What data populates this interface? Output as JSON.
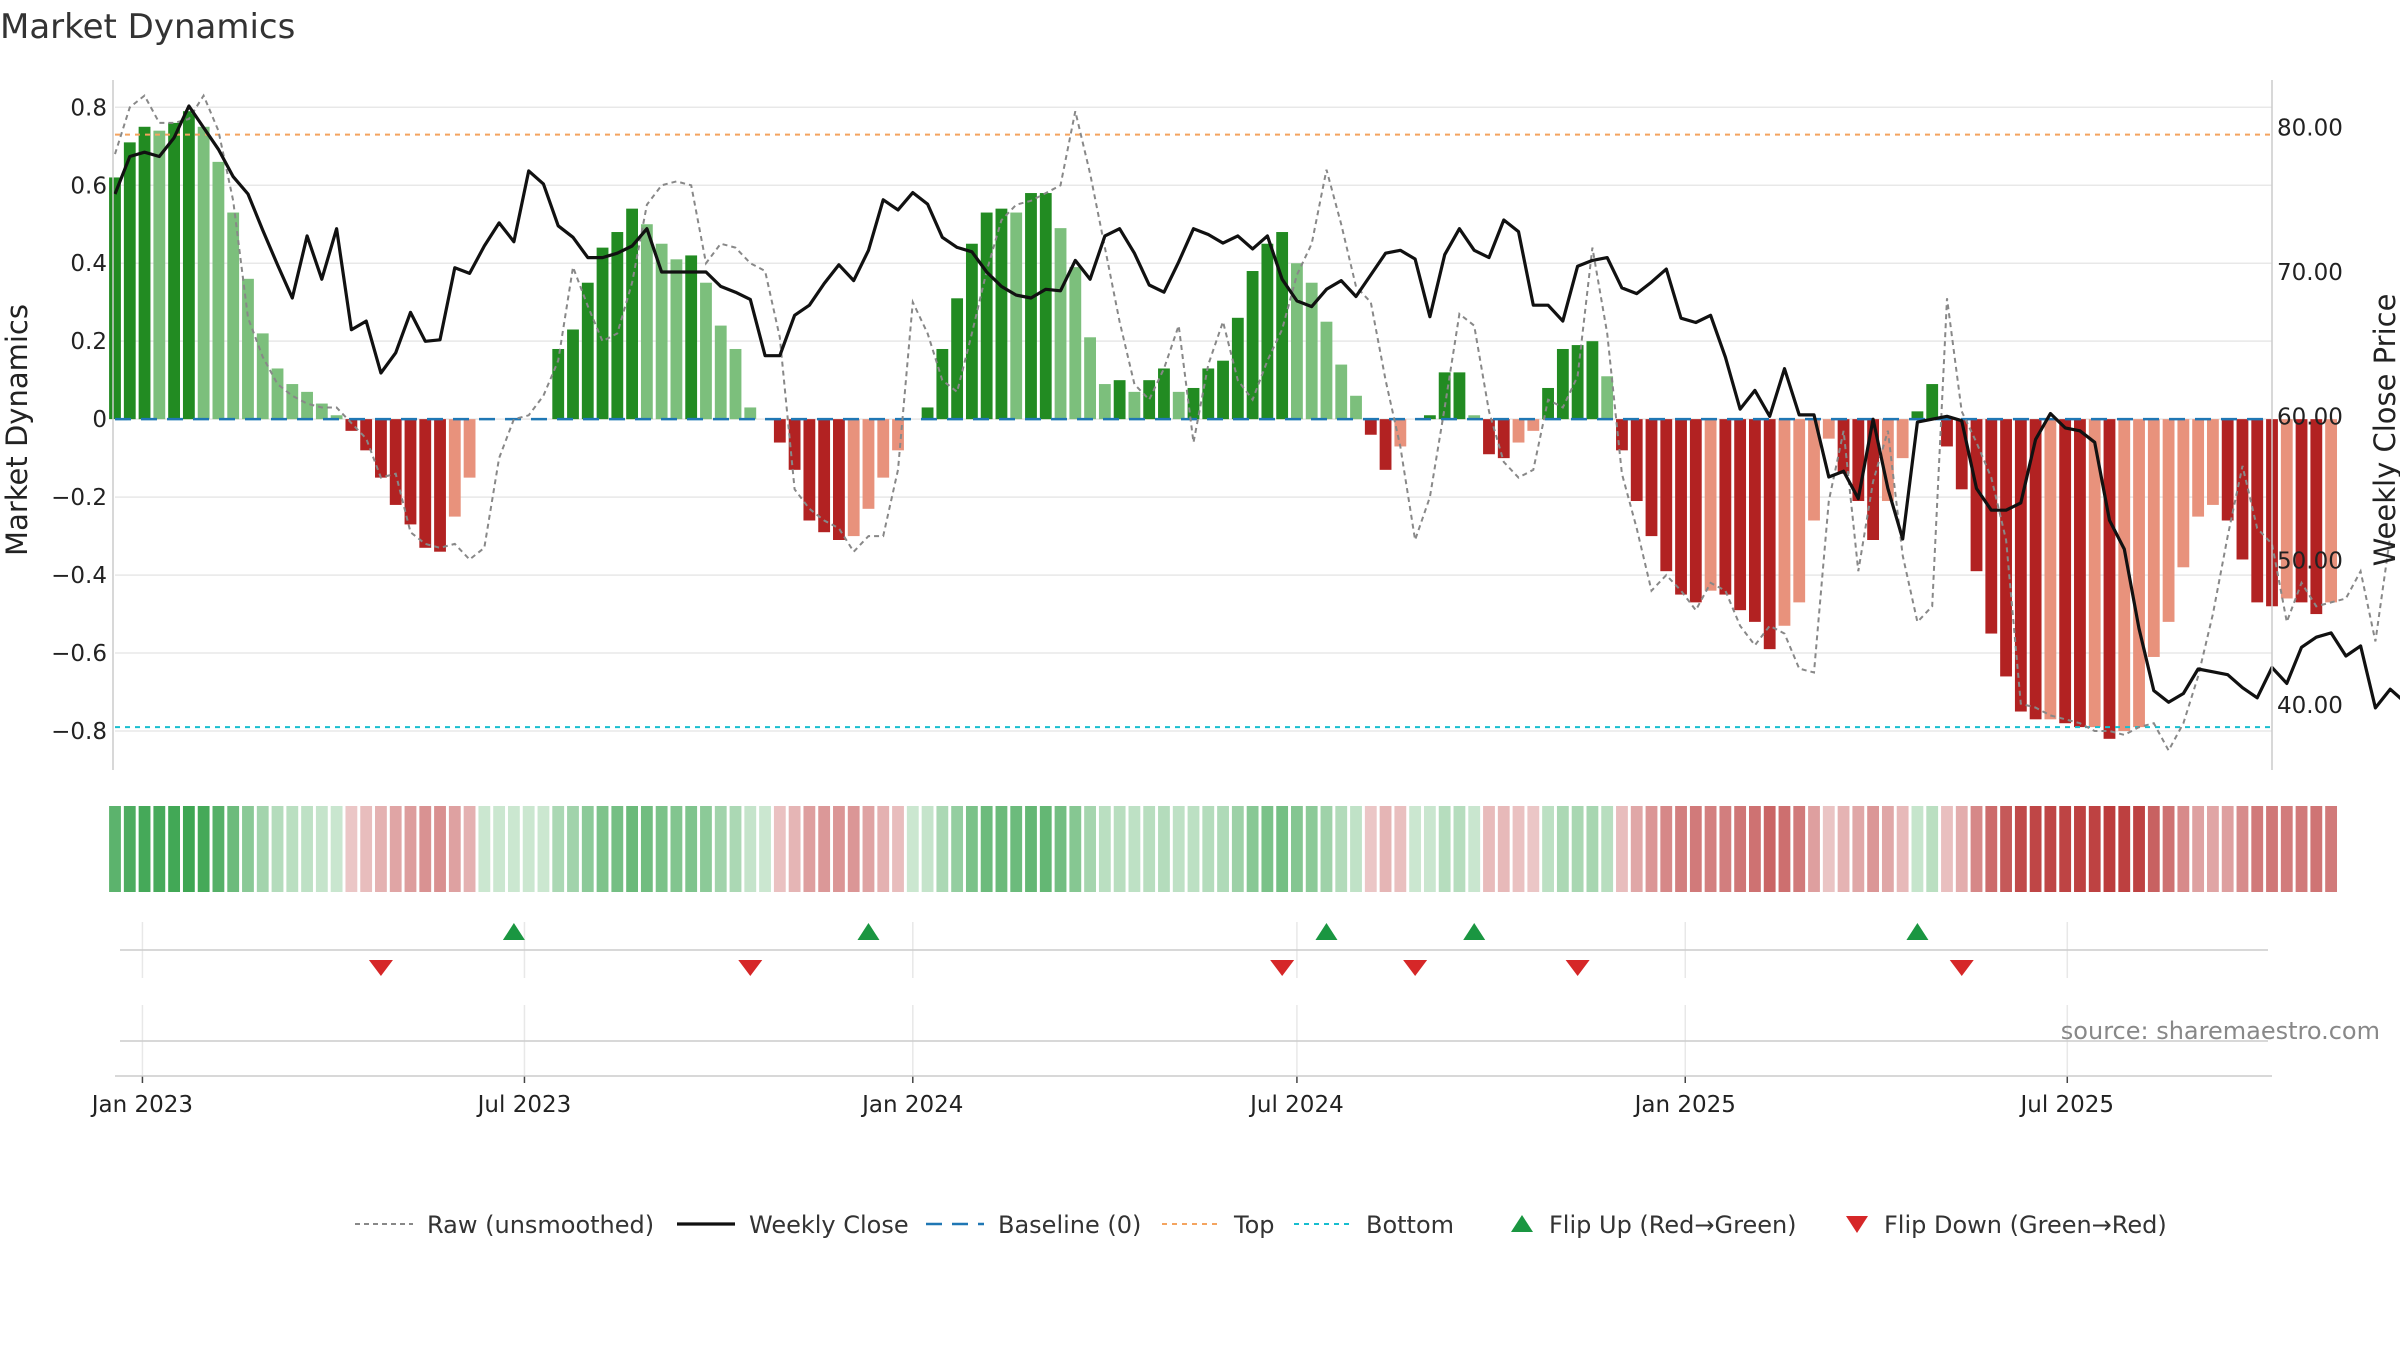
{
  "chart_data": {
    "type": "bar",
    "title": "Market Dynamics",
    "ylabel": "Market Dynamics",
    "y2label": "Weekly Close Price",
    "ylim": [
      -0.9,
      0.87
    ],
    "y2lim": [
      35.5,
      83.3
    ],
    "yticks": [
      "0.8",
      "0.6",
      "0.4",
      "0.2",
      "0",
      "−0.2",
      "−0.4",
      "−0.6",
      "−0.8"
    ],
    "ytick_values": [
      0.8,
      0.6,
      0.4,
      0.2,
      0,
      -0.2,
      -0.4,
      -0.6,
      -0.8
    ],
    "y2ticks": [
      "80.00",
      "70.00",
      "60.00",
      "50.00",
      "40.00"
    ],
    "y2tick_values": [
      80,
      70,
      60,
      50,
      40
    ],
    "xticks": [
      "Jan 2023",
      "Jul 2023",
      "Jan 2024",
      "Jul 2024",
      "Jan 2025",
      "Jul 2025"
    ],
    "xtick_values": [
      "2023-01-01",
      "2023-07-01",
      "2024-01-01",
      "2024-07-01",
      "2025-01-01",
      "2025-07-01"
    ],
    "x_start": "2022-12-19",
    "x_end": "2025-10-06",
    "top_level": 0.73,
    "bottom_level": -0.79,
    "baseline": 0,
    "grid": true,
    "legend_position": "bottom",
    "source": "source: sharemaestro.com",
    "series": [
      {
        "name": "Market Dynamics",
        "style": "bars",
        "start": "2022-12-19",
        "step_days": 7,
        "values": [
          0.62,
          0.71,
          0.75,
          0.74,
          0.76,
          0.79,
          0.75,
          0.66,
          0.53,
          0.36,
          0.22,
          0.13,
          0.09,
          0.07,
          0.04,
          0.01,
          -0.03,
          -0.08,
          -0.15,
          -0.22,
          -0.27,
          -0.33,
          -0.34,
          -0.25,
          -0.15,
          0.0,
          0.0,
          0.0,
          0.0,
          0.0,
          0.18,
          0.23,
          0.35,
          0.44,
          0.48,
          0.54,
          0.5,
          0.45,
          0.41,
          0.42,
          0.35,
          0.24,
          0.18,
          0.03,
          0.0,
          -0.06,
          -0.13,
          -0.26,
          -0.29,
          -0.31,
          -0.3,
          -0.23,
          -0.15,
          -0.08,
          0.0,
          0.03,
          0.18,
          0.31,
          0.45,
          0.53,
          0.54,
          0.53,
          0.58,
          0.58,
          0.49,
          0.39,
          0.21,
          0.09,
          0.1,
          0.07,
          0.1,
          0.13,
          0.07,
          0.08,
          0.13,
          0.15,
          0.26,
          0.38,
          0.45,
          0.48,
          0.4,
          0.35,
          0.25,
          0.14,
          0.06,
          -0.04,
          -0.13,
          -0.07,
          0.0,
          0.01,
          0.12,
          0.12,
          0.01,
          -0.09,
          -0.1,
          -0.06,
          -0.03,
          0.08,
          0.18,
          0.19,
          0.2,
          0.11,
          -0.08,
          -0.21,
          -0.3,
          -0.39,
          -0.45,
          -0.47,
          -0.44,
          -0.45,
          -0.49,
          -0.52,
          -0.59,
          -0.53,
          -0.47,
          -0.26,
          -0.05,
          -0.14,
          -0.21,
          -0.31,
          -0.21,
          -0.1,
          0.02,
          0.09,
          -0.07,
          -0.18,
          -0.39,
          -0.55,
          -0.66,
          -0.75,
          -0.77,
          -0.77,
          -0.78,
          -0.79,
          -0.79,
          -0.82,
          -0.8,
          -0.79,
          -0.61,
          -0.52,
          -0.38,
          -0.25,
          -0.22,
          -0.26,
          -0.36,
          -0.47,
          -0.48,
          -0.46,
          -0.47,
          -0.5,
          -0.47
        ]
      },
      {
        "name": "Raw (unsmoothed)",
        "style": "dashed",
        "start": "2022-12-19",
        "step_days": 7,
        "values": [
          0.68,
          0.8,
          0.83,
          0.76,
          0.76,
          0.77,
          0.83,
          0.74,
          0.56,
          0.26,
          0.16,
          0.09,
          0.06,
          0.04,
          0.03,
          0.03,
          -0.01,
          -0.05,
          -0.15,
          -0.14,
          -0.29,
          -0.32,
          -0.33,
          -0.32,
          -0.36,
          -0.33,
          -0.1,
          0.0,
          0.01,
          0.06,
          0.15,
          0.39,
          0.29,
          0.2,
          0.22,
          0.35,
          0.55,
          0.6,
          0.61,
          0.6,
          0.4,
          0.45,
          0.44,
          0.4,
          0.38,
          0.21,
          -0.18,
          -0.23,
          -0.26,
          -0.28,
          -0.34,
          -0.3,
          -0.3,
          -0.13,
          0.3,
          0.22,
          0.1,
          0.07,
          0.22,
          0.38,
          0.51,
          0.55,
          0.56,
          0.58,
          0.6,
          0.79,
          0.63,
          0.44,
          0.25,
          0.09,
          0.05,
          0.13,
          0.24,
          -0.06,
          0.14,
          0.25,
          0.1,
          0.05,
          0.15,
          0.23,
          0.37,
          0.45,
          0.64,
          0.5,
          0.34,
          0.3,
          0.1,
          -0.07,
          -0.31,
          -0.2,
          0.03,
          0.27,
          0.24,
          0.02,
          -0.11,
          -0.15,
          -0.13,
          0.05,
          0.03,
          0.11,
          0.44,
          0.22,
          -0.14,
          -0.28,
          -0.44,
          -0.4,
          -0.44,
          -0.49,
          -0.42,
          -0.44,
          -0.53,
          -0.58,
          -0.53,
          -0.55,
          -0.64,
          -0.65,
          -0.21,
          -0.03,
          -0.39,
          -0.16,
          -0.03,
          -0.35,
          -0.52,
          -0.48,
          0.31,
          0.02,
          -0.06,
          -0.15,
          -0.31,
          -0.73,
          -0.74,
          -0.76,
          -0.77,
          -0.78,
          -0.8,
          -0.8,
          -0.81,
          -0.79,
          -0.78,
          -0.85,
          -0.78,
          -0.66,
          -0.5,
          -0.3,
          -0.12,
          -0.28,
          -0.32,
          -0.52,
          -0.42,
          -0.48,
          -0.47,
          -0.46,
          -0.39,
          -0.57,
          -0.3
        ]
      },
      {
        "name": "Weekly Close",
        "style": "solid",
        "axis": "y2",
        "start": "2022-12-19",
        "step_days": 7,
        "values": [
          75.4,
          78.0,
          78.3,
          78.0,
          79.3,
          81.5,
          80.0,
          78.5,
          76.6,
          75.4,
          72.9,
          70.5,
          68.2,
          72.5,
          69.5,
          73.0,
          66.0,
          66.6,
          63.0,
          64.4,
          67.2,
          65.2,
          65.3,
          70.3,
          69.9,
          71.8,
          73.4,
          72.1,
          77.0,
          76.1,
          73.2,
          72.4,
          71.0,
          71.0,
          71.3,
          71.8,
          73.0,
          70.0,
          70.0,
          70.0,
          70.0,
          69.0,
          68.6,
          68.1,
          64.2,
          64.2,
          67.0,
          67.7,
          69.2,
          70.5,
          69.4,
          71.5,
          75.0,
          74.3,
          75.5,
          74.7,
          72.4,
          71.7,
          71.4,
          70.0,
          69.0,
          68.4,
          68.2,
          68.8,
          68.7,
          70.8,
          69.5,
          72.5,
          73.0,
          71.3,
          69.1,
          68.6,
          70.7,
          73.0,
          72.6,
          72.0,
          72.5,
          71.6,
          72.5,
          69.5,
          68.0,
          67.6,
          68.8,
          69.4,
          68.3,
          69.8,
          71.3,
          71.5,
          70.9,
          66.9,
          71.2,
          73.0,
          71.5,
          71.0,
          73.6,
          72.8,
          67.7,
          67.7,
          66.6,
          70.4,
          70.8,
          71.0,
          68.9,
          68.5,
          69.3,
          70.2,
          66.8,
          66.5,
          67.0,
          64.1,
          60.5,
          61.8,
          60.0,
          63.3,
          60.1,
          60.1,
          55.8,
          56.2,
          54.3,
          59.8,
          55.0,
          51.5,
          59.6,
          59.8,
          60.0,
          59.7,
          55.0,
          53.5,
          53.5,
          54.0,
          58.4,
          60.2,
          59.2,
          59.0,
          58.2,
          52.8,
          50.8,
          45.3,
          41.0,
          40.2,
          40.8,
          42.5,
          42.3,
          42.1,
          41.2,
          40.5,
          42.6,
          41.5,
          44.0,
          44.7,
          45.0,
          43.4,
          44.1,
          39.8,
          41.1,
          40.2,
          40.6,
          41.6,
          40.9,
          38.0,
          37.3
        ]
      }
    ],
    "regime_strip": {
      "name": "Regime strip",
      "start": "2022-12-19",
      "step_days": 7,
      "count": 155
    },
    "flip_up": {
      "name": "Flip Up (Red→Green)",
      "dates": [
        "2023-06-26",
        "2023-12-11",
        "2024-07-15",
        "2024-09-23",
        "2025-04-21"
      ]
    },
    "flip_down": {
      "name": "Flip Down (Green→Red)",
      "dates": [
        "2023-04-24",
        "2023-10-16",
        "2024-06-24",
        "2024-08-26",
        "2024-11-11",
        "2025-05-12"
      ]
    },
    "legend": [
      "Raw (unsmoothed)",
      "Weekly Close",
      "Baseline (0)",
      "Top",
      "Bottom",
      "Flip Up (Red→Green)",
      "Flip Down (Green→Red)"
    ]
  },
  "colors": {
    "green_strong": "#228B22",
    "green_light": "#7CBF7C",
    "red_strong": "#B22222",
    "red_light": "#E8927C",
    "weekly_close": "#111111",
    "raw": "#888888",
    "baseline": "#1F77B4",
    "top": "#F4A460",
    "bottom": "#17BECF",
    "flip_up": "#1A9641",
    "flip_down": "#D62728",
    "grid": "#E8E8E8"
  }
}
